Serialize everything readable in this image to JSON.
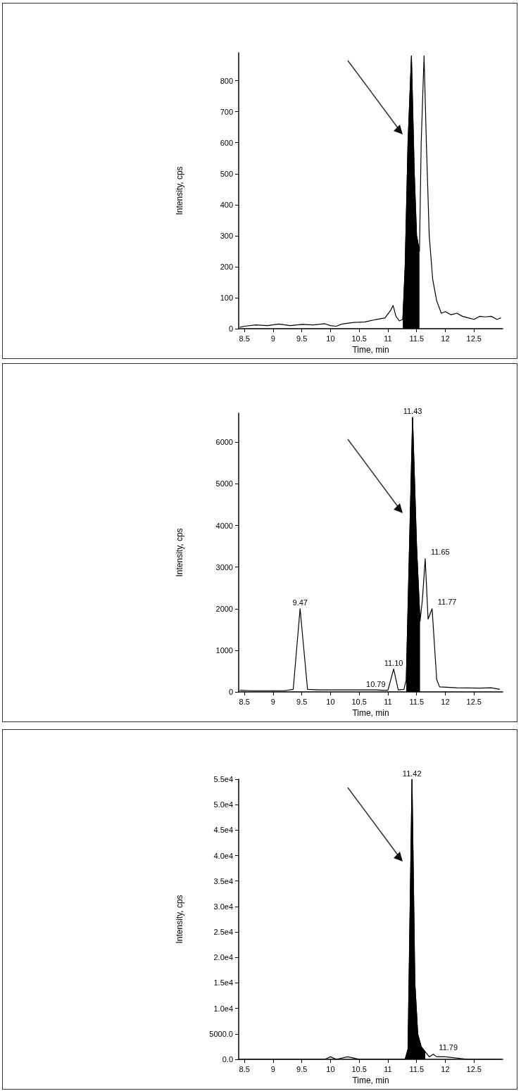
{
  "chart_data": [
    {
      "type": "line",
      "xlabel": "Time, min",
      "ylabel": "Intensity, cps",
      "grid": false,
      "marker": "none",
      "xlim": [
        8.4,
        13.0
      ],
      "xticks": [
        8.5,
        9.0,
        9.5,
        10.0,
        10.5,
        11.0,
        11.5,
        12.0,
        12.5
      ],
      "ylim": [
        0,
        890
      ],
      "yticks": [
        0,
        100,
        200,
        300,
        400,
        500,
        600,
        700,
        800
      ],
      "series": [
        {
          "color": "#000000",
          "x": [
            8.42,
            8.5,
            8.7,
            8.9,
            9.1,
            9.3,
            9.5,
            9.7,
            9.9,
            10.0,
            10.1,
            10.2,
            10.4,
            10.6,
            10.8,
            10.95,
            11.05,
            11.09,
            11.14,
            11.2,
            11.26,
            11.3,
            11.35,
            11.41,
            11.46,
            11.5,
            11.55,
            11.58,
            11.63,
            11.67,
            11.72,
            11.78,
            11.85,
            11.93,
            12.0,
            12.1,
            12.2,
            12.3,
            12.4,
            12.5,
            12.6,
            12.7,
            12.8,
            12.9,
            12.97
          ],
          "values": [
            5,
            8,
            12,
            10,
            15,
            10,
            14,
            12,
            16,
            10,
            8,
            15,
            20,
            22,
            30,
            35,
            60,
            75,
            40,
            25,
            30,
            200,
            600,
            880,
            500,
            300,
            250,
            600,
            880,
            600,
            300,
            160,
            90,
            50,
            55,
            45,
            50,
            40,
            35,
            30,
            40,
            38,
            40,
            30,
            35
          ]
        },
        {
          "type": "area",
          "color": "#000000",
          "x": [
            11.26,
            11.3,
            11.35,
            11.41,
            11.46,
            11.5,
            11.55
          ],
          "values": [
            30,
            200,
            600,
            880,
            500,
            300,
            250
          ]
        }
      ]
    },
    {
      "type": "line",
      "xlabel": "Time, min",
      "ylabel": "Intensity, cps",
      "grid": false,
      "marker": "none",
      "xlim": [
        8.4,
        13.0
      ],
      "xticks": [
        8.5,
        9.0,
        9.5,
        10.0,
        10.5,
        11.0,
        11.5,
        12.0,
        12.5
      ],
      "ylim": [
        0,
        6700
      ],
      "yticks": [
        0,
        1000,
        2000,
        3000,
        4000,
        5000,
        6000
      ],
      "annotations": [
        {
          "text": "9.47",
          "x": 9.47,
          "y": 2000
        },
        {
          "text": "10.79",
          "x": 10.79,
          "y": 50
        },
        {
          "text": "11.10",
          "x": 11.1,
          "y": 550
        },
        {
          "text": "11.43",
          "x": 11.43,
          "y": 6600
        },
        {
          "text": "11.65",
          "x": 11.65,
          "y": 3200
        },
        {
          "text": "11.77",
          "x": 11.77,
          "y": 2000
        }
      ],
      "series": [
        {
          "color": "#000000",
          "x": [
            8.42,
            8.6,
            9.0,
            9.2,
            9.35,
            9.47,
            9.6,
            9.8,
            10.2,
            10.6,
            10.79,
            10.9,
            11.0,
            11.1,
            11.18,
            11.28,
            11.32,
            11.43,
            11.5,
            11.56,
            11.6,
            11.65,
            11.7,
            11.77,
            11.85,
            11.9,
            12.2,
            12.6,
            12.8,
            12.95
          ],
          "values": [
            40,
            30,
            30,
            30,
            60,
            2000,
            60,
            50,
            50,
            50,
            50,
            40,
            40,
            550,
            50,
            60,
            300,
            6600,
            3500,
            1700,
            2200,
            3200,
            1750,
            2000,
            300,
            120,
            100,
            90,
            100,
            60
          ]
        },
        {
          "type": "area",
          "color": "#000000",
          "x": [
            11.32,
            11.43,
            11.5,
            11.56
          ],
          "values": [
            300,
            6600,
            3500,
            1700
          ]
        }
      ]
    },
    {
      "type": "line",
      "xlabel": "Time, min",
      "ylabel": "Intensity, cps",
      "grid": false,
      "marker": "none",
      "xlim": [
        8.4,
        13.0
      ],
      "xticks": [
        8.5,
        9.0,
        9.5,
        10.0,
        10.5,
        11.0,
        11.5,
        12.0,
        12.5
      ],
      "ylim": [
        0,
        55000
      ],
      "yticks": [
        {
          "value": 0,
          "label": "0.0"
        },
        {
          "value": 5000,
          "label": "5000.0"
        },
        {
          "value": 10000,
          "label": "1.0e4"
        },
        {
          "value": 15000,
          "label": "1.5e4"
        },
        {
          "value": 20000,
          "label": "2.0e4"
        },
        {
          "value": 25000,
          "label": "2.5e4"
        },
        {
          "value": 30000,
          "label": "3.0e4"
        },
        {
          "value": 35000,
          "label": "3.5e4"
        },
        {
          "value": 40000,
          "label": "4.0e4"
        },
        {
          "value": 45000,
          "label": "4.5e4"
        },
        {
          "value": 50000,
          "label": "5.0e4"
        },
        {
          "value": 55000,
          "label": "5.5e4"
        }
      ],
      "annotations": [
        {
          "text": "11.42",
          "x": 11.42,
          "y": 55000
        },
        {
          "text": "11.79",
          "x": 11.79,
          "y": 1000
        }
      ],
      "series": [
        {
          "color": "#000000",
          "x": [
            8.42,
            8.8,
            9.2,
            9.6,
            9.9,
            10.0,
            10.1,
            10.3,
            10.5,
            10.7,
            11.0,
            11.3,
            11.35,
            11.42,
            11.47,
            11.52,
            11.58,
            11.65,
            11.72,
            11.79,
            11.85,
            12.0,
            12.4,
            12.97
          ],
          "values": [
            0,
            0,
            0,
            0,
            0,
            500,
            0,
            500,
            0,
            0,
            0,
            0,
            2000,
            55000,
            15000,
            5000,
            2500,
            1500,
            500,
            1000,
            500,
            500,
            0,
            0
          ]
        },
        {
          "type": "area",
          "color": "#000000",
          "x": [
            11.3,
            11.35,
            11.42,
            11.47,
            11.52,
            11.58,
            11.65
          ],
          "values": [
            0,
            2000,
            55000,
            15000,
            5000,
            2500,
            1500
          ]
        }
      ]
    }
  ]
}
